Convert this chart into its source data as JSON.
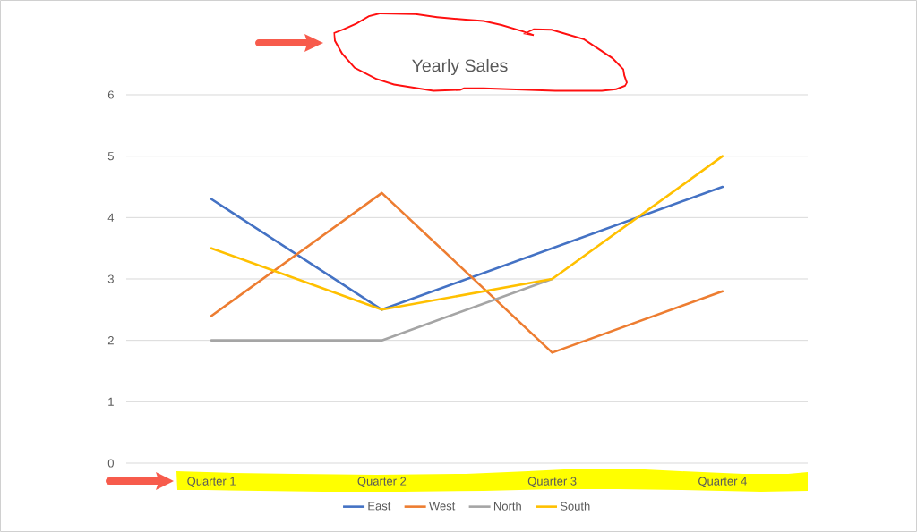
{
  "chart_data": {
    "type": "line",
    "title": "Yearly Sales",
    "categories": [
      "Quarter 1",
      "Quarter 2",
      "Quarter 3",
      "Quarter 4"
    ],
    "series": [
      {
        "name": "East",
        "color": "#4472c4",
        "values": [
          4.3,
          2.5,
          3.5,
          4.5
        ]
      },
      {
        "name": "West",
        "color": "#ed7d31",
        "values": [
          2.4,
          4.4,
          1.8,
          2.8
        ]
      },
      {
        "name": "North",
        "color": "#a5a5a5",
        "values": [
          2,
          2,
          3,
          null
        ]
      },
      {
        "name": "South",
        "color": "#ffc000",
        "values": [
          3.5,
          2.5,
          3,
          5
        ]
      }
    ],
    "ylim": [
      0,
      6
    ],
    "yticks": [
      0,
      1,
      2,
      3,
      4,
      5,
      6
    ],
    "grid": "y",
    "legend": "bottom",
    "marker": "none",
    "line_style": "solid"
  }
}
